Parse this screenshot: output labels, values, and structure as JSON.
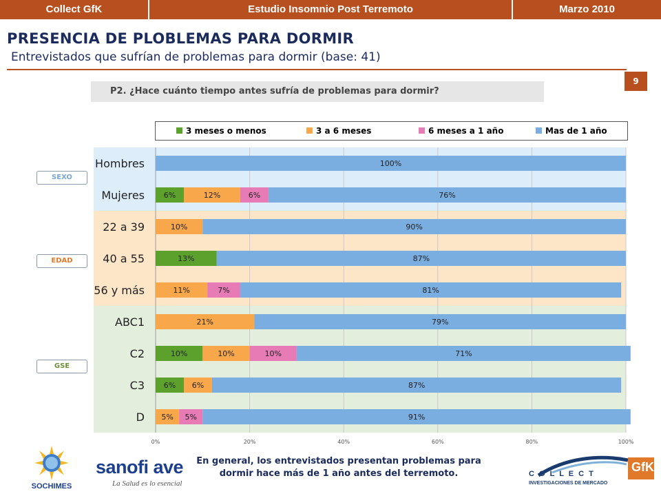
{
  "header": {
    "left": "Collect GfK",
    "center": "Estudio Insomnio Post Terremoto",
    "right": "Marzo 2010"
  },
  "page_title": "PRESENCIA DE PLOBLEMAS PARA DORMIR",
  "page_subtitle": "Entrevistados que sufrían de problemas para dormir (base: 41)",
  "page_number": "9",
  "question": "P2. ¿Hace cuánto tiempo  antes sufría de  problemas para dormir?",
  "groups": [
    {
      "label": "SEXO",
      "color": "#7aa6d6"
    },
    {
      "label": "EDAD",
      "color": "#e07a2a"
    },
    {
      "label": "GSE",
      "color": "#6d8f3a"
    }
  ],
  "footer": {
    "line1": "En general, los entrevistados presentan problemas para",
    "line2": "dormir hace más de 1 año antes del terremoto."
  },
  "logos": {
    "sochimes": "SOCHIMES",
    "sanofi": "sanofi ave",
    "sanofi_tag": "La Salud es lo esencial",
    "collect": "C O L L E C T",
    "collect_sub": "INVESTIGACIONES DE MERCADO",
    "gfk": "GfK"
  },
  "colors": {
    "accent": "#b84f1f",
    "navy": "#1a2b5c",
    "band_sexo": "#ddeefa",
    "band_edad": "#fde6c8",
    "band_gse": "#e4eedd"
  },
  "chart_data": {
    "type": "bar",
    "orientation": "horizontal",
    "stacked": true,
    "categories": [
      "Hombres",
      "Mujeres",
      "22 a 39",
      "40 a 55",
      "56 y más",
      "ABC1",
      "C2",
      "C3",
      "D"
    ],
    "category_groups": [
      "SEXO",
      "SEXO",
      "EDAD",
      "EDAD",
      "EDAD",
      "GSE",
      "GSE",
      "GSE",
      "GSE"
    ],
    "series": [
      {
        "name": "3 meses o menos",
        "color": "#5ca12b",
        "values": [
          0,
          6,
          0,
          13,
          0,
          0,
          10,
          6,
          0
        ],
        "labels": [
          "",
          "6%",
          "",
          "13%",
          "",
          "",
          "10%",
          "6%",
          ""
        ]
      },
      {
        "name": "3 a 6 meses",
        "color": "#f9a74b",
        "values": [
          0,
          12,
          10,
          0,
          11,
          21,
          10,
          6,
          5
        ],
        "labels": [
          "",
          "12%",
          "10%",
          "",
          "11%",
          "21%",
          "10%",
          "6%",
          "5%"
        ]
      },
      {
        "name": "6 meses a 1 año",
        "color": "#e67bb6",
        "values": [
          0,
          6,
          0,
          0,
          7,
          0,
          10,
          0,
          5
        ],
        "labels": [
          "",
          "6%",
          "",
          "",
          "7%",
          "",
          "10%",
          "",
          "5%"
        ]
      },
      {
        "name": "Mas de 1 año",
        "color": "#7aaee0",
        "values": [
          100,
          76,
          90,
          87,
          81,
          79,
          71,
          87,
          91
        ],
        "labels": [
          "100%",
          "76%",
          "90%",
          "87%",
          "81%",
          "79%",
          "71%",
          "87%",
          "91%"
        ]
      }
    ],
    "xlim": [
      0,
      100
    ],
    "xticks": [
      "0%",
      "20%",
      "40%",
      "60%",
      "80%",
      "100%"
    ],
    "grid": true,
    "legend": "top"
  }
}
